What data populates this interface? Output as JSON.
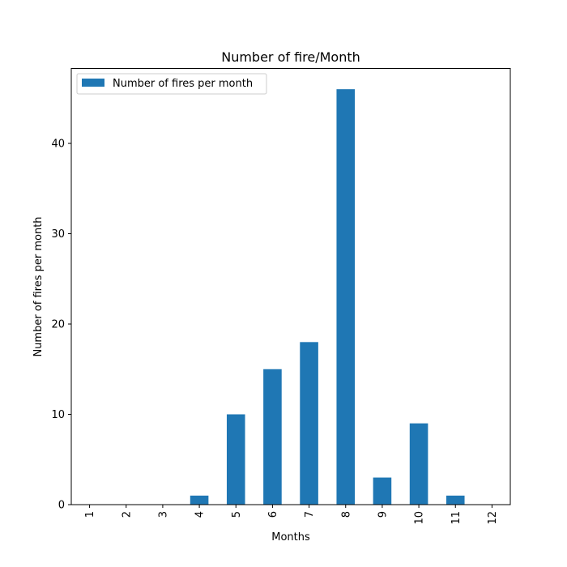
{
  "chart_data": {
    "type": "bar",
    "title": "Number of fire/Month",
    "xlabel": "Months",
    "ylabel": "Number of fires per month",
    "categories": [
      "1",
      "2",
      "3",
      "4",
      "5",
      "6",
      "7",
      "8",
      "9",
      "10",
      "11",
      "12"
    ],
    "series": [
      {
        "name": "Number of fires per month",
        "color": "#1f77b4",
        "values": [
          0,
          0,
          0,
          1,
          10,
          15,
          18,
          46,
          3,
          9,
          1,
          0
        ]
      }
    ],
    "ylim": [
      0,
      48.3
    ],
    "yticks": [
      0,
      10,
      20,
      30,
      40
    ],
    "xtick_rotation": "vertical",
    "grid": false,
    "legend_position": "upper-left"
  }
}
